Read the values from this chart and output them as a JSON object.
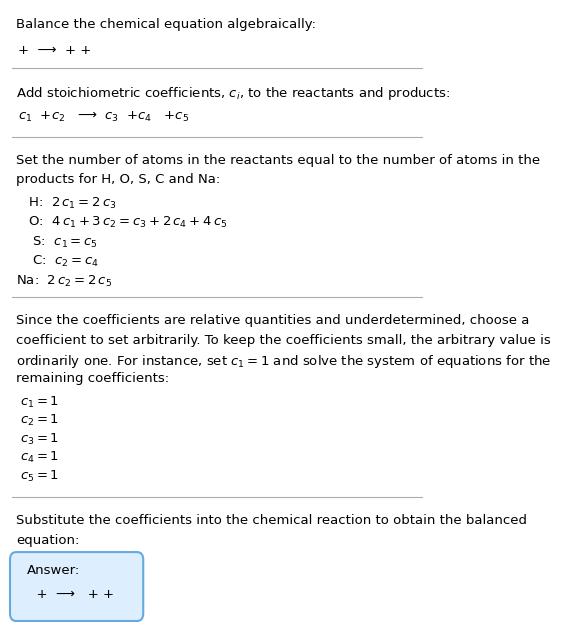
{
  "bg_color": "#ffffff",
  "text_color": "#000000",
  "line_color": "#aaaaaa",
  "box_border_color": "#66aadd",
  "box_bg_color": "#ddeeff",
  "title": "Balance the chemical equation algebraically:",
  "section1_line1": "+  ⟶  + +",
  "section2_header": "Add stoichiometric coefficients, $c_i$, to the reactants and products:",
  "section2_line1": "$c_1$  +$c_2$   ⟶  $c_3$  +$c_4$   +$c_5$",
  "section3_header1": "Set the number of atoms in the reactants equal to the number of atoms in the",
  "section3_header2": "products for H, O, S, C and Na:",
  "section4_header1": "Since the coefficients are relative quantities and underdetermined, choose a",
  "section4_header2": "coefficient to set arbitrarily. To keep the coefficients small, the arbitrary value is",
  "section4_header3": "ordinarily one. For instance, set $c_1 = 1$ and solve the system of equations for the",
  "section4_header4": "remaining coefficients:",
  "sol_c1": "$c_1 = 1$",
  "sol_c2": "$c_2 = 1$",
  "sol_c3": "$c_3 = 1$",
  "sol_c4": "$c_4 = 1$",
  "sol_c5": "$c_5 = 1$",
  "section5_header1": "Substitute the coefficients into the chemical reaction to obtain the balanced",
  "section5_header2": "equation:",
  "answer_label": "Answer:",
  "answer_eq": "  +  ⟶   + +"
}
